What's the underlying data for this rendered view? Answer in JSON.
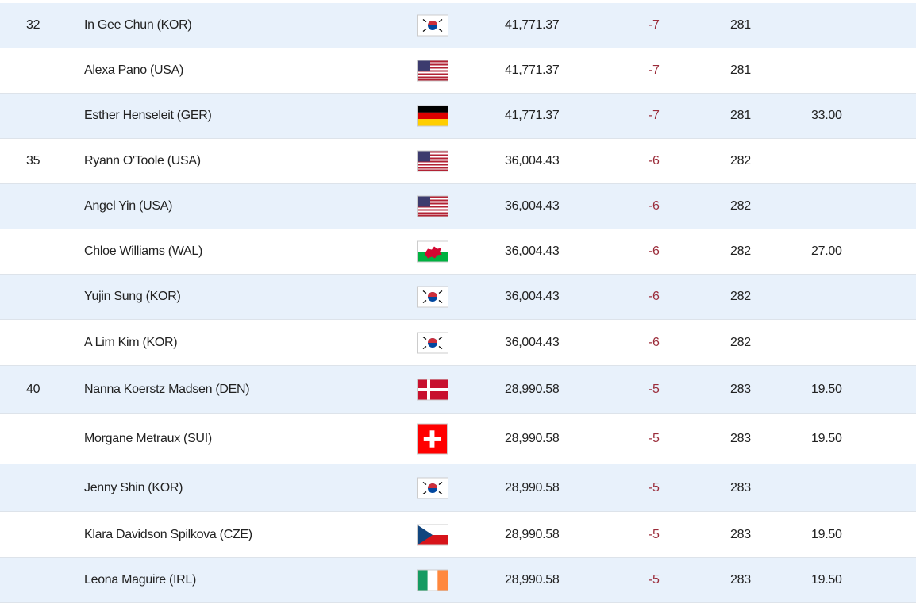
{
  "table": {
    "rows": [
      {
        "pos": "32",
        "name": "In Gee Chun (KOR)",
        "money": "41,771.37",
        "score": "-7",
        "total": "281"
      },
      {
        "name": "Alexa Pano (USA)",
        "money": "41,771.37",
        "score": "-7",
        "total": "281"
      },
      {
        "name": "Esther Henseleit (GER)",
        "money": "41,771.37",
        "score": "-7",
        "total": "281",
        "points": "33.00"
      },
      {
        "pos": "35",
        "name": "Ryann O'Toole (USA)",
        "money": "36,004.43",
        "score": "-6",
        "total": "282"
      },
      {
        "name": "Angel Yin (USA)",
        "money": "36,004.43",
        "score": "-6",
        "total": "282"
      },
      {
        "name": "Chloe Williams (WAL)",
        "money": "36,004.43",
        "score": "-6",
        "total": "282",
        "points": "27.00"
      },
      {
        "name": "Yujin Sung (KOR)",
        "money": "36,004.43",
        "score": "-6",
        "total": "282"
      },
      {
        "name": "A Lim Kim (KOR)",
        "money": "36,004.43",
        "score": "-6",
        "total": "282"
      },
      {
        "pos": "40",
        "name": "Nanna Koerstz Madsen (DEN)",
        "money": "28,990.58",
        "score": "-5",
        "total": "283",
        "points": "19.50"
      },
      {
        "name": "Morgane Metraux (SUI)",
        "money": "28,990.58",
        "score": "-5",
        "total": "283",
        "points": "19.50"
      },
      {
        "name": "Jenny Shin (KOR)",
        "money": "28,990.58",
        "score": "-5",
        "total": "283"
      },
      {
        "name": "Klara Davidson Spilkova (CZE)",
        "money": "28,990.58",
        "score": "-5",
        "total": "283",
        "points": "19.50"
      },
      {
        "name": "Leona Maguire (IRL)",
        "money": "28,990.58",
        "score": "-5",
        "total": "283",
        "points": "19.50"
      }
    ]
  }
}
